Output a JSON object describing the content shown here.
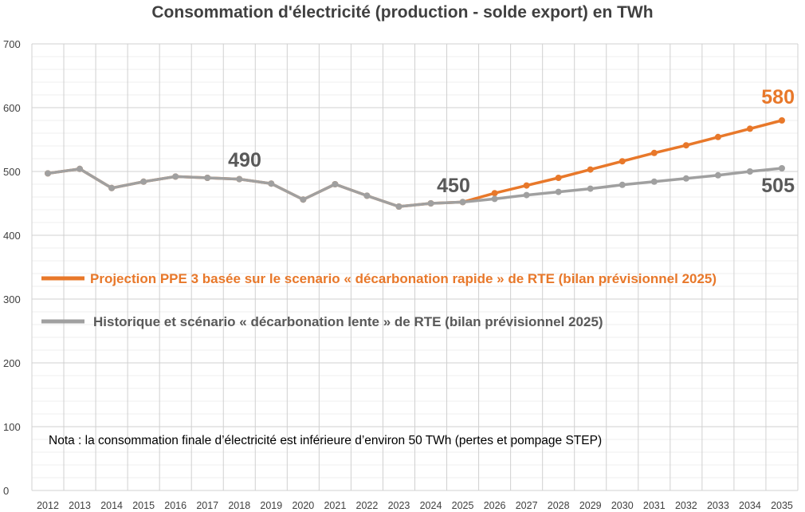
{
  "chart_data": {
    "type": "line",
    "title": "Consommation d'électricité (production - solde export) en TWh",
    "xlabel": "",
    "ylabel": "",
    "ylim": [
      0,
      700
    ],
    "yticks": [
      0,
      100,
      200,
      300,
      400,
      500,
      600,
      700
    ],
    "minor_grid_step": 20,
    "grid": true,
    "x": [
      "2012",
      "2013",
      "2014",
      "2015",
      "2016",
      "2017",
      "2018",
      "2019",
      "2020",
      "2021",
      "2022",
      "2023",
      "2024",
      "2025",
      "2026",
      "2027",
      "2028",
      "2029",
      "2030",
      "2031",
      "2032",
      "2033",
      "2034",
      "2035"
    ],
    "series": [
      {
        "name": "Projection PPE 3 basée sur le scenario « décarbonation rapide » de RTE (bilan prévisionnel 2025)",
        "color": "#E8782A",
        "values": [
          497,
          504,
          474,
          484,
          492,
          490,
          488,
          481,
          456,
          480,
          462,
          445,
          450,
          452,
          466,
          478,
          490,
          503,
          516,
          529,
          541,
          554,
          567,
          580
        ]
      },
      {
        "name": "Historique et scénario « décarbonation lente » de RTE (bilan prévisionnel 2025)",
        "color": "#A0A0A0",
        "values": [
          497,
          504,
          474,
          484,
          492,
          490,
          488,
          481,
          456,
          480,
          462,
          445,
          450,
          452,
          457,
          463,
          468,
          473,
          479,
          484,
          489,
          494,
          500,
          505
        ]
      }
    ],
    "legend": [
      {
        "label": "Projection PPE 3 basée sur le scenario « décarbonation rapide » de RTE (bilan prévisionnel 2025)",
        "color": "#E8782A"
      },
      {
        "label": "Historique et scénario « décarbonation lente » de RTE (bilan prévisionnel 2025)",
        "color": "#A0A0A0"
      }
    ],
    "legend_position": "center-left (inside plot)",
    "annotations": [
      {
        "text": "490",
        "x": "2018",
        "color": "#595959"
      },
      {
        "text": "450",
        "x": "2024",
        "color": "#595959"
      },
      {
        "text": "580",
        "x": "2035",
        "color": "#E8782A"
      },
      {
        "text": "505",
        "x": "2035",
        "color": "#595959"
      }
    ],
    "note": "Nota : la consommation finale d’électricité est inférieure d’environ 50 TWh (pertes et pompage STEP)"
  }
}
